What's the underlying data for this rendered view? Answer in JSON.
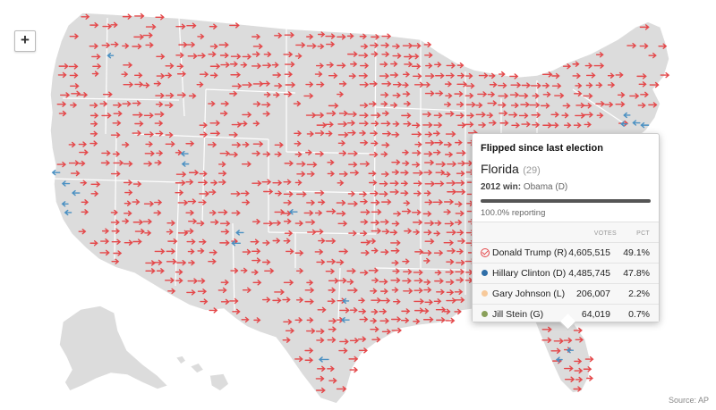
{
  "map": {
    "colors": {
      "land": "#dcdcdc",
      "border": "#ffffff",
      "republican": "#e4484a",
      "democrat": "#4a90c2"
    },
    "zoom_label": "+",
    "source": "Source: AP"
  },
  "tooltip": {
    "note": "Flipped since last election",
    "state": "Florida",
    "electoral_votes": "(29)",
    "prev_label": "2012 win:",
    "prev_value": "Obama (D)",
    "reporting": 100.0,
    "reporting_label": "100.0% reporting",
    "col_votes": "VOTES",
    "col_pct": "PCT",
    "candidates": [
      {
        "name": "Donald Trump (R)",
        "votes": "4,605,515",
        "pct": "49.1%",
        "color": "#e4484a",
        "winner": true
      },
      {
        "name": "Hillary Clinton (D)",
        "votes": "4,485,745",
        "pct": "47.8%",
        "color": "#2f6ea8",
        "winner": false
      },
      {
        "name": "Gary Johnson (L)",
        "votes": "206,007",
        "pct": "2.2%",
        "color": "#f7c99a",
        "winner": false
      },
      {
        "name": "Jill Stein (G)",
        "votes": "64,019",
        "pct": "0.7%",
        "color": "#8aa05a",
        "winner": false
      }
    ]
  }
}
